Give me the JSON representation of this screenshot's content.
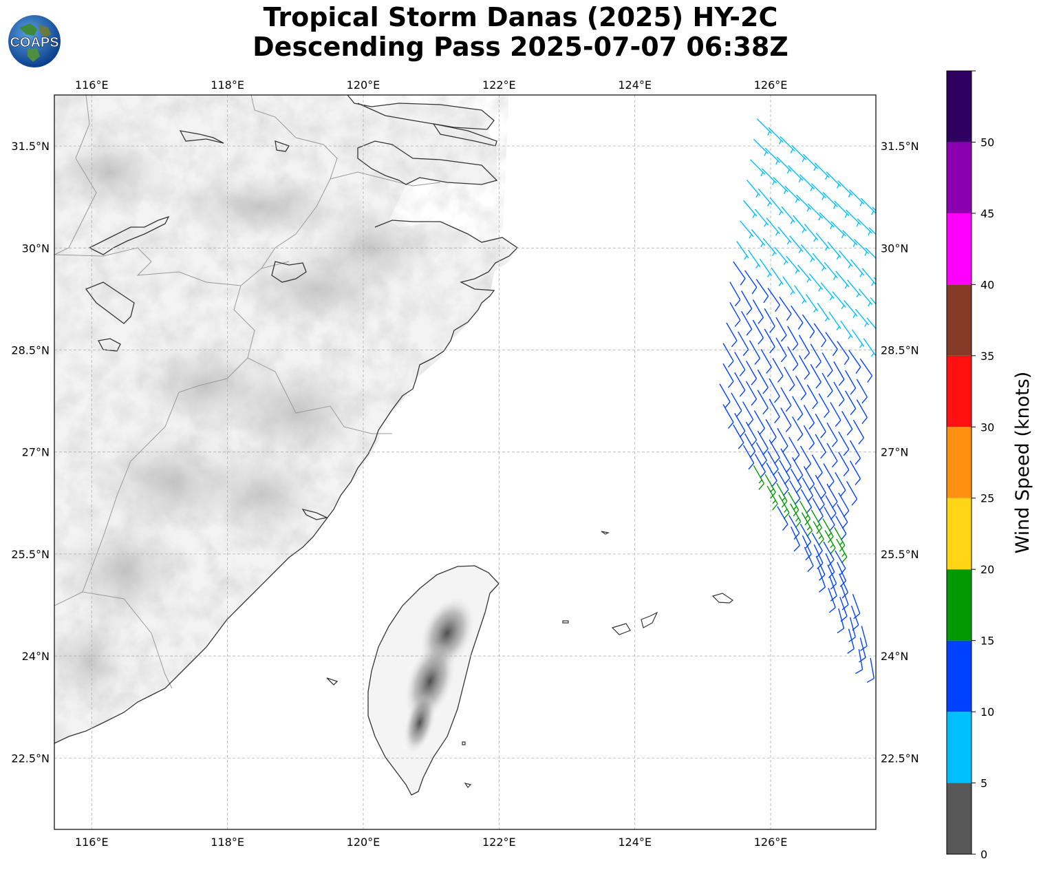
{
  "title": {
    "line1": "Tropical Storm Danas (2025) HY-2C",
    "line2": "Descending Pass 2025-07-07 06:38Z"
  },
  "logo": {
    "text": "COAPS"
  },
  "map": {
    "lon_range": [
      115.45,
      127.55
    ],
    "lat_range": [
      21.45,
      32.25
    ],
    "lon_ticks": [
      {
        "value": 116,
        "label": "116°E"
      },
      {
        "value": 118,
        "label": "118°E"
      },
      {
        "value": 120,
        "label": "120°E"
      },
      {
        "value": 122,
        "label": "122°E"
      },
      {
        "value": 124,
        "label": "124°E"
      },
      {
        "value": 126,
        "label": "126°E"
      }
    ],
    "lat_ticks": [
      {
        "value": 31.5,
        "label": "31.5°N"
      },
      {
        "value": 30.0,
        "label": "30°N"
      },
      {
        "value": 28.5,
        "label": "28.5°N"
      },
      {
        "value": 27.0,
        "label": "27°N"
      },
      {
        "value": 25.5,
        "label": "25.5°N"
      },
      {
        "value": 24.0,
        "label": "24°N"
      },
      {
        "value": 22.5,
        "label": "22.5°N"
      }
    ],
    "grid": true
  },
  "colorbar": {
    "label": "Wind Speed (knots)",
    "bins": [
      {
        "from": 0,
        "to": 5,
        "color": "#585858"
      },
      {
        "from": 5,
        "to": 10,
        "color": "#00bfff"
      },
      {
        "from": 10,
        "to": 15,
        "color": "#0040ff"
      },
      {
        "from": 15,
        "to": 20,
        "color": "#009900"
      },
      {
        "from": 20,
        "to": 25,
        "color": "#ffd515"
      },
      {
        "from": 25,
        "to": 30,
        "color": "#ff9010"
      },
      {
        "from": 30,
        "to": 35,
        "color": "#ff1010"
      },
      {
        "from": 35,
        "to": 40,
        "color": "#843c28"
      },
      {
        "from": 40,
        "to": 45,
        "color": "#ff00ff"
      },
      {
        "from": 45,
        "to": 50,
        "color": "#8a00b0"
      },
      {
        "from": 50,
        "to": 55,
        "color": "#300060"
      }
    ],
    "ticks": [
      "0",
      "5",
      "10",
      "15",
      "20",
      "25",
      "30",
      "35",
      "40",
      "45",
      "50"
    ]
  },
  "colors": {
    "coastline": "#333333",
    "borders": "#999999",
    "grid": "#b0b0b0"
  },
  "swath_wind_rows": [
    {
      "lat": 31.9,
      "lon_start": 125.8,
      "speed": 8,
      "dir": 135,
      "count": 12
    },
    {
      "lat": 31.6,
      "lon_start": 125.75,
      "speed": 8,
      "dir": 135,
      "count": 12
    },
    {
      "lat": 31.3,
      "lon_start": 125.7,
      "speed": 8,
      "dir": 135,
      "count": 12
    },
    {
      "lat": 31.0,
      "lon_start": 125.65,
      "speed": 8,
      "dir": 140,
      "count": 12
    },
    {
      "lat": 30.7,
      "lon_start": 125.6,
      "speed": 8,
      "dir": 140,
      "count": 12
    },
    {
      "lat": 30.4,
      "lon_start": 125.55,
      "speed": 8,
      "dir": 140,
      "count": 12
    },
    {
      "lat": 30.1,
      "lon_start": 125.5,
      "speed": 9,
      "dir": 145,
      "count": 12
    },
    {
      "lat": 29.8,
      "lon_start": 125.45,
      "speed": 10,
      "dir": 145,
      "count": 12
    },
    {
      "lat": 29.5,
      "lon_start": 125.4,
      "speed": 12,
      "dir": 150,
      "count": 12
    },
    {
      "lat": 29.2,
      "lon_start": 125.4,
      "speed": 12,
      "dir": 150,
      "count": 12
    },
    {
      "lat": 28.9,
      "lon_start": 125.35,
      "speed": 12,
      "dir": 150,
      "count": 12
    },
    {
      "lat": 28.6,
      "lon_start": 125.3,
      "speed": 12,
      "dir": 150,
      "count": 12
    },
    {
      "lat": 28.3,
      "lon_start": 125.3,
      "speed": 12,
      "dir": 150,
      "count": 12
    },
    {
      "lat": 28.0,
      "lon_start": 125.25,
      "speed": 12,
      "dir": 150,
      "count": 12
    },
    {
      "lat": 27.7,
      "lon_start": 125.3,
      "speed": 13,
      "dir": 150,
      "count": 11
    },
    {
      "lat": 27.4,
      "lon_start": 125.45,
      "speed": 13,
      "dir": 150,
      "count": 10
    },
    {
      "lat": 27.1,
      "lon_start": 125.6,
      "speed": 13,
      "dir": 150,
      "count": 9
    },
    {
      "lat": 26.8,
      "lon_start": 125.75,
      "speed": 15,
      "dir": 150,
      "count": 8
    },
    {
      "lat": 26.5,
      "lon_start": 125.95,
      "speed": 16,
      "dir": 150,
      "count": 7
    },
    {
      "lat": 26.2,
      "lon_start": 126.1,
      "speed": 14,
      "dir": 150,
      "count": 6
    },
    {
      "lat": 25.9,
      "lon_start": 126.3,
      "speed": 12,
      "dir": 155,
      "count": 5
    },
    {
      "lat": 25.6,
      "lon_start": 126.5,
      "speed": 12,
      "dir": 155,
      "count": 4
    },
    {
      "lat": 25.3,
      "lon_start": 126.7,
      "speed": 12,
      "dir": 160,
      "count": 4
    },
    {
      "lat": 25.0,
      "lon_start": 126.85,
      "speed": 12,
      "dir": 160,
      "count": 3
    },
    {
      "lat": 24.7,
      "lon_start": 127.0,
      "speed": 12,
      "dir": 165,
      "count": 3
    },
    {
      "lat": 24.4,
      "lon_start": 127.15,
      "speed": 12,
      "dir": 165,
      "count": 2
    },
    {
      "lat": 24.1,
      "lon_start": 127.3,
      "speed": 12,
      "dir": 170,
      "count": 2
    }
  ]
}
